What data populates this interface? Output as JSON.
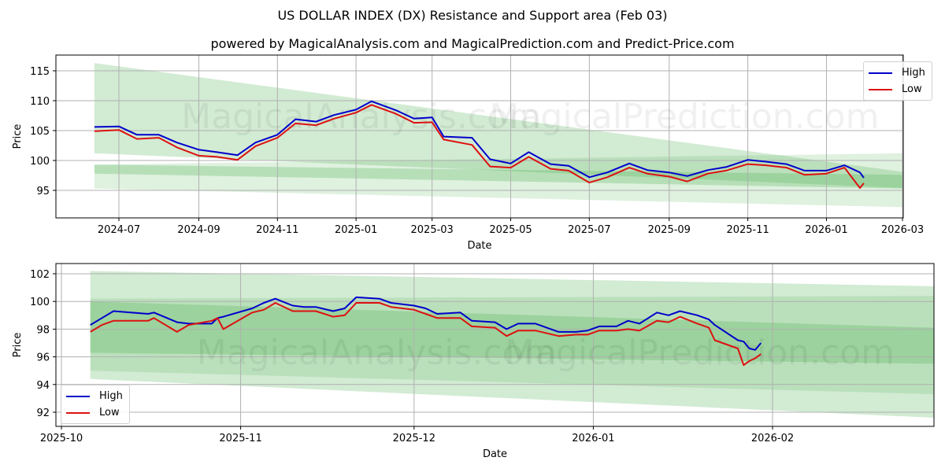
{
  "header": {
    "title": "US DOLLAR INDEX (DX) Resistance and Support area (Feb 03)",
    "subtitle": "powered by MagicalAnalysis.com and MagicalPrediction.com and Predict-Price.com"
  },
  "watermarks": [
    "MagicalAnalysis.com",
    "MagicalPrediction.com"
  ],
  "colors": {
    "high": "#0000cc",
    "low": "#dd1111",
    "band": "#4caf50"
  },
  "chart_data": [
    {
      "type": "line",
      "title": "US DOLLAR INDEX (DX) Resistance and Support area (Feb 03)",
      "xlabel": "Date",
      "ylabel": "Price",
      "ylim": [
        90.5,
        117.5
      ],
      "yticks": [
        95,
        100,
        105,
        110,
        115
      ],
      "xticks": [
        "2024-07",
        "2024-09",
        "2024-11",
        "2025-01",
        "2025-03",
        "2025-05",
        "2025-07",
        "2025-09",
        "2025-11",
        "2026-01",
        "2026-03"
      ],
      "grid": true,
      "legend_position": "upper right",
      "legend": [
        "High",
        "Low"
      ],
      "x": [
        "2024-06-12",
        "2024-07-01",
        "2024-07-15",
        "2024-08-01",
        "2024-08-15",
        "2024-09-01",
        "2024-09-15",
        "2024-10-01",
        "2024-10-15",
        "2024-11-01",
        "2024-11-15",
        "2024-12-01",
        "2024-12-15",
        "2025-01-01",
        "2025-01-13",
        "2025-02-01",
        "2025-02-15",
        "2025-03-01",
        "2025-03-10",
        "2025-04-01",
        "2025-04-15",
        "2025-05-01",
        "2025-05-15",
        "2025-06-01",
        "2025-06-15",
        "2025-07-01",
        "2025-07-15",
        "2025-08-01",
        "2025-08-15",
        "2025-09-01",
        "2025-09-15",
        "2025-10-01",
        "2025-10-15",
        "2025-11-01",
        "2025-11-15",
        "2025-12-01",
        "2025-12-15",
        "2026-01-01",
        "2026-01-15",
        "2026-01-27",
        "2026-01-30"
      ],
      "series": [
        {
          "name": "High",
          "values": [
            105.6,
            105.7,
            104.3,
            104.3,
            103.0,
            101.8,
            101.4,
            100.9,
            103.0,
            104.3,
            106.9,
            106.5,
            107.6,
            108.5,
            109.9,
            108.4,
            107.0,
            107.2,
            104.0,
            103.8,
            100.2,
            99.5,
            101.4,
            99.4,
            99.1,
            97.2,
            98.0,
            99.5,
            98.4,
            98.0,
            97.4,
            98.4,
            98.9,
            100.1,
            99.8,
            99.4,
            98.3,
            98.3,
            99.2,
            98.0,
            97.1
          ],
          "color": "#0000cc"
        },
        {
          "name": "Low",
          "values": [
            104.9,
            105.1,
            103.6,
            103.8,
            102.2,
            100.8,
            100.6,
            100.1,
            102.4,
            103.8,
            106.2,
            105.9,
            107.0,
            108.0,
            109.3,
            107.8,
            106.3,
            106.4,
            103.5,
            102.6,
            99.0,
            98.8,
            100.6,
            98.6,
            98.3,
            96.3,
            97.2,
            98.8,
            97.8,
            97.3,
            96.5,
            97.8,
            98.3,
            99.4,
            99.2,
            98.8,
            97.6,
            97.8,
            98.8,
            95.4,
            96.2
          ],
          "color": "#dd1111"
        }
      ],
      "bands": [
        {
          "name": "resistance-outer",
          "start": {
            "x": "2024-06-12",
            "top": 116.3,
            "bottom": 101.2
          },
          "end": {
            "x": "2026-03-01",
            "top": 98.1,
            "bottom": 95.4
          }
        },
        {
          "name": "support-outer",
          "start": {
            "x": "2024-06-12",
            "top": 99.3,
            "bottom": 95.3
          },
          "end": {
            "x": "2026-03-01",
            "top": 101.2,
            "bottom": 92.2
          }
        },
        {
          "name": "support-inner",
          "start": {
            "x": "2024-06-12",
            "top": 99.3,
            "bottom": 97.8
          },
          "end": {
            "x": "2026-03-01",
            "top": 97.6,
            "bottom": 95.3
          }
        }
      ]
    },
    {
      "type": "line",
      "title": "",
      "xlabel": "Date",
      "ylabel": "Price",
      "ylim": [
        91.0,
        103.0
      ],
      "yticks": [
        92,
        94,
        96,
        98,
        100,
        102
      ],
      "xticks": [
        "2025-10",
        "2025-11",
        "2025-12",
        "2026-01",
        "2026-02"
      ],
      "grid": true,
      "legend_position": "lower left",
      "legend": [
        "High",
        "Low"
      ],
      "x": [
        "2025-10-06",
        "2025-10-08",
        "2025-10-10",
        "2025-10-16",
        "2025-10-17",
        "2025-10-21",
        "2025-10-23",
        "2025-10-27",
        "2025-10-28",
        "2025-10-29",
        "2025-11-03",
        "2025-11-05",
        "2025-11-07",
        "2025-11-10",
        "2025-11-12",
        "2025-11-14",
        "2025-11-17",
        "2025-11-19",
        "2025-11-21",
        "2025-11-25",
        "2025-11-27",
        "2025-12-01",
        "2025-12-03",
        "2025-12-05",
        "2025-12-09",
        "2025-12-11",
        "2025-12-15",
        "2025-12-17",
        "2025-12-19",
        "2025-12-22",
        "2025-12-26",
        "2025-12-29",
        "2025-12-31",
        "2026-01-02",
        "2026-01-05",
        "2026-01-07",
        "2026-01-09",
        "2026-01-12",
        "2026-01-14",
        "2026-01-16",
        "2026-01-19",
        "2026-01-21",
        "2026-01-22",
        "2026-01-26",
        "2026-01-27",
        "2026-01-28",
        "2026-01-29",
        "2026-01-30"
      ],
      "series": [
        {
          "name": "High",
          "values": [
            98.3,
            98.8,
            99.3,
            99.1,
            99.2,
            98.5,
            98.4,
            98.4,
            98.8,
            98.9,
            99.5,
            99.9,
            100.2,
            99.7,
            99.6,
            99.6,
            99.3,
            99.5,
            100.3,
            100.2,
            99.9,
            99.7,
            99.5,
            99.1,
            99.2,
            98.6,
            98.5,
            98.0,
            98.4,
            98.4,
            97.8,
            97.8,
            97.9,
            98.2,
            98.2,
            98.6,
            98.4,
            99.2,
            99.0,
            99.3,
            99.0,
            98.7,
            98.3,
            97.2,
            97.1,
            96.6,
            96.5,
            97.0
          ],
          "color": "#0000cc"
        },
        {
          "name": "Low",
          "values": [
            97.8,
            98.3,
            98.6,
            98.6,
            98.8,
            97.8,
            98.3,
            98.6,
            98.8,
            98.0,
            99.2,
            99.4,
            99.9,
            99.3,
            99.3,
            99.3,
            98.9,
            99.0,
            99.9,
            99.9,
            99.6,
            99.4,
            99.1,
            98.8,
            98.8,
            98.2,
            98.1,
            97.5,
            97.9,
            97.9,
            97.5,
            97.6,
            97.6,
            97.9,
            97.9,
            98.0,
            97.9,
            98.6,
            98.5,
            98.9,
            98.4,
            98.1,
            97.2,
            96.6,
            95.4,
            95.7,
            95.9,
            96.2
          ],
          "color": "#dd1111"
        }
      ],
      "bands": [
        {
          "name": "outer-upper",
          "start": {
            "x": "2025-10-06",
            "top": 102.2,
            "bottom": 94.4
          },
          "end": {
            "x": "2026-03-01",
            "top": 101.1,
            "bottom": 91.6
          }
        },
        {
          "name": "mid",
          "start": {
            "x": "2025-10-06",
            "top": 100.2,
            "bottom": 95.0
          },
          "end": {
            "x": "2026-03-01",
            "top": 100.4,
            "bottom": 93.3
          }
        },
        {
          "name": "core",
          "start": {
            "x": "2025-10-06",
            "top": 100.0,
            "bottom": 96.3
          },
          "end": {
            "x": "2026-03-01",
            "top": 98.1,
            "bottom": 95.5
          }
        }
      ]
    }
  ]
}
